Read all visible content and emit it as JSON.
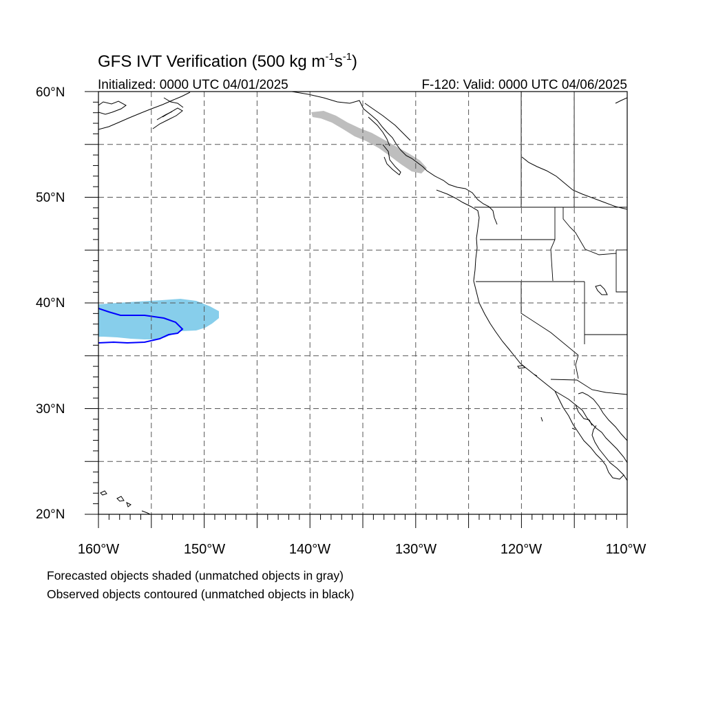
{
  "title": {
    "main": "GFS IVT Verification (500 kg m",
    "sup1": "-1",
    "mid": "s",
    "sup2": "-1",
    "end": ")"
  },
  "initialized": "Initialized: 0000 UTC 04/01/2025",
  "valid": "F-120: Valid: 0000 UTC 04/06/2025",
  "map": {
    "lon_range": [
      -160,
      -110
    ],
    "lat_range": [
      20,
      60
    ],
    "projection": "cylindrical equidistant",
    "gridlines": "dashed every 5 degrees",
    "lat_labels": [
      "20°N",
      "30°N",
      "40°N",
      "50°N",
      "60°N"
    ],
    "lon_labels": [
      "160°W",
      "150°W",
      "140°W",
      "130°W",
      "120°W",
      "110°W"
    ],
    "colors": {
      "matched_forecast_fill": "#87CEEB",
      "unmatched_forecast_fill": "#BEBEBE",
      "matched_observed_contour": "#0000FF",
      "coastline": "#000000",
      "grid": "#555555"
    }
  },
  "captions": {
    "line1": "Forecasted objects shaded (unmatched objects in gray)",
    "line2": "Observed objects contoured (unmatched objects in black)"
  }
}
